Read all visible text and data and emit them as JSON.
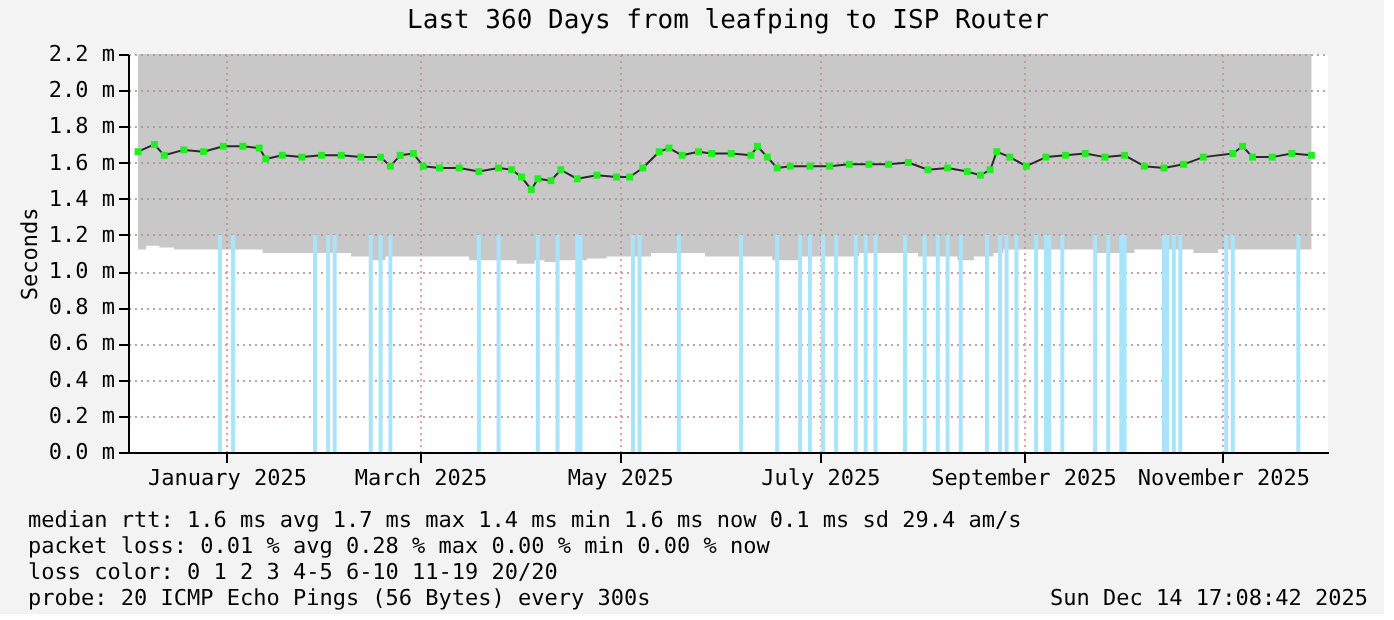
{
  "chart_data": {
    "type": "line",
    "title": "Last 360 Days from leafping to ISP Router",
    "ylabel": "Seconds",
    "xlim": [
      "2024-12-20",
      "2025-12-15"
    ],
    "xticks": [
      {
        "value": "2025-01-16",
        "label": "January 2025"
      },
      {
        "value": "2025-03-16",
        "label": "March 2025"
      },
      {
        "value": "2025-05-16",
        "label": "May 2025"
      },
      {
        "value": "2025-07-16",
        "label": "July 2025"
      },
      {
        "value": "2025-09-16",
        "label": "September 2025"
      },
      {
        "value": "2025-11-16",
        "label": "November 2025"
      }
    ],
    "ylim": [
      0,
      2.2
    ],
    "yticks": [
      {
        "value": 0,
        "label": "0.0 m"
      },
      {
        "value": 0.2,
        "label": "0.2 m"
      },
      {
        "value": 0.4,
        "label": "0.4 m"
      },
      {
        "value": 0.6,
        "label": "0.6 m"
      },
      {
        "value": 0.8,
        "label": "0.8 m"
      },
      {
        "value": 1,
        "label": "1.0 m"
      },
      {
        "value": 1.2,
        "label": "1.2 m"
      },
      {
        "value": 1.4,
        "label": "1.4 m"
      },
      {
        "value": 1.6,
        "label": "1.6 m"
      },
      {
        "value": 1.8,
        "label": "1.8 m"
      },
      {
        "value": 2,
        "label": "2.0 m"
      },
      {
        "value": 2.2,
        "label": "2.2 m"
      }
    ],
    "grid": true,
    "marker": "square",
    "line_style": "solid",
    "series": [
      {
        "type": "bar",
        "color": "#a8e4fc",
        "x": [
          "2025-01-14",
          "2025-01-18",
          "2025-02-12",
          "2025-02-16",
          "2025-02-18",
          "2025-03-01",
          "2025-03-04",
          "2025-03-07",
          "2025-04-03",
          "2025-04-09",
          "2025-04-21",
          "2025-04-27",
          "2025-05-03",
          "2025-05-04",
          "2025-05-20",
          "2025-05-22",
          "2025-06-03",
          "2025-06-22",
          "2025-07-03",
          "2025-07-10",
          "2025-07-13",
          "2025-07-17",
          "2025-07-21",
          "2025-07-27",
          "2025-07-30",
          "2025-08-02",
          "2025-08-11",
          "2025-08-17",
          "2025-08-21",
          "2025-08-24",
          "2025-08-28",
          "2025-09-05",
          "2025-09-09",
          "2025-09-11",
          "2025-09-14",
          "2025-09-20",
          "2025-09-23",
          "2025-09-24",
          "2025-09-28",
          "2025-10-08",
          "2025-10-12",
          "2025-10-16",
          "2025-10-17",
          "2025-10-29",
          "2025-10-30",
          "2025-11-01",
          "2025-11-03",
          "2025-11-17",
          "2025-11-19",
          "2025-12-09"
        ],
        "values": [
          1.2,
          1.2,
          1.2,
          1.2,
          1.2,
          1.2,
          1.2,
          1.2,
          1.2,
          1.2,
          1.2,
          1.2,
          1.2,
          1.2,
          1.2,
          1.2,
          1.2,
          1.2,
          1.2,
          1.2,
          1.2,
          1.2,
          1.2,
          1.2,
          1.2,
          1.2,
          1.2,
          1.2,
          1.2,
          1.2,
          1.2,
          1.2,
          1.2,
          1.2,
          1.2,
          1.2,
          1.2,
          1.2,
          1.2,
          1.2,
          1.2,
          1.2,
          1.2,
          1.2,
          1.2,
          1.2,
          1.2,
          1.2,
          1.2,
          1.2
        ]
      },
      {
        "color": "#22ee22",
        "x": [
          "2024-12-20",
          "2024-12-25",
          "2024-12-28",
          "2025-01-03",
          "2025-01-09",
          "2025-01-15",
          "2025-01-21",
          "2025-01-26",
          "2025-01-28",
          "2025-02-02",
          "2025-02-08",
          "2025-02-14",
          "2025-02-20",
          "2025-02-26",
          "2025-03-04",
          "2025-03-07",
          "2025-03-10",
          "2025-03-14",
          "2025-03-17",
          "2025-03-22",
          "2025-03-28",
          "2025-04-03",
          "2025-04-09",
          "2025-04-13",
          "2025-04-16",
          "2025-04-19",
          "2025-04-21",
          "2025-04-25",
          "2025-04-28",
          "2025-05-03",
          "2025-05-09",
          "2025-05-15",
          "2025-05-19",
          "2025-05-23",
          "2025-05-28",
          "2025-05-31",
          "2025-06-04",
          "2025-06-09",
          "2025-06-13",
          "2025-06-19",
          "2025-06-25",
          "2025-06-27",
          "2025-06-30",
          "2025-07-03",
          "2025-07-07",
          "2025-07-13",
          "2025-07-19",
          "2025-07-25",
          "2025-07-31",
          "2025-08-06",
          "2025-08-12",
          "2025-08-18",
          "2025-08-24",
          "2025-08-30",
          "2025-09-03",
          "2025-09-06",
          "2025-09-08",
          "2025-09-12",
          "2025-09-17",
          "2025-09-23",
          "2025-09-29",
          "2025-10-05",
          "2025-10-11",
          "2025-10-17",
          "2025-10-23",
          "2025-10-29",
          "2025-11-04",
          "2025-11-10",
          "2025-11-19",
          "2025-11-22",
          "2025-11-25",
          "2025-12-01",
          "2025-12-07",
          "2025-12-13"
        ],
        "values": [
          1.66,
          1.7,
          1.64,
          1.67,
          1.66,
          1.69,
          1.69,
          1.68,
          1.62,
          1.64,
          1.63,
          1.64,
          1.64,
          1.63,
          1.63,
          1.58,
          1.64,
          1.65,
          1.58,
          1.57,
          1.57,
          1.55,
          1.57,
          1.56,
          1.52,
          1.45,
          1.51,
          1.5,
          1.56,
          1.51,
          1.53,
          1.52,
          1.52,
          1.57,
          1.66,
          1.68,
          1.64,
          1.66,
          1.65,
          1.65,
          1.64,
          1.69,
          1.63,
          1.57,
          1.58,
          1.58,
          1.58,
          1.59,
          1.59,
          1.59,
          1.6,
          1.56,
          1.57,
          1.55,
          1.53,
          1.56,
          1.66,
          1.63,
          1.58,
          1.63,
          1.64,
          1.65,
          1.63,
          1.64,
          1.58,
          1.57,
          1.59,
          1.63,
          1.65,
          1.69,
          1.63,
          1.63,
          1.65,
          1.64
        ],
        "lower": [
          1.12,
          1.14,
          1.13,
          1.12,
          1.12,
          1.12,
          1.12,
          1.12,
          1.1,
          1.1,
          1.1,
          1.1,
          1.1,
          1.08,
          1.06,
          1.08,
          1.08,
          1.08,
          1.08,
          1.08,
          1.08,
          1.06,
          1.06,
          1.06,
          1.04,
          1.04,
          1.06,
          1.05,
          1.06,
          1.06,
          1.07,
          1.08,
          1.08,
          1.08,
          1.1,
          1.1,
          1.1,
          1.1,
          1.08,
          1.08,
          1.08,
          1.08,
          1.08,
          1.06,
          1.06,
          1.08,
          1.08,
          1.08,
          1.1,
          1.1,
          1.1,
          1.08,
          1.08,
          1.06,
          1.08,
          1.08,
          1.1,
          1.12,
          1.12,
          1.12,
          1.12,
          1.12,
          1.1,
          1.1,
          1.12,
          1.12,
          1.12,
          1.1,
          1.12,
          1.12,
          1.12,
          1.12,
          1.12,
          1.12
        ],
        "upper": [
          2.2,
          2.2,
          2.2,
          2.2,
          2.2,
          2.2,
          2.2,
          2.2,
          2.2,
          2.2,
          2.2,
          2.2,
          2.2,
          2.2,
          2.2,
          2.2,
          2.2,
          2.2,
          2.2,
          2.2,
          2.2,
          2.2,
          2.2,
          2.2,
          2.2,
          2.2,
          2.2,
          2.2,
          2.2,
          2.2,
          2.2,
          2.2,
          2.2,
          2.2,
          2.2,
          2.2,
          2.2,
          2.2,
          2.2,
          2.2,
          2.2,
          2.2,
          2.2,
          2.2,
          2.2,
          2.2,
          2.2,
          2.2,
          2.2,
          2.2,
          2.2,
          2.2,
          2.2,
          2.2,
          2.2,
          2.2,
          2.2,
          2.2,
          2.2,
          2.2,
          2.2,
          2.2,
          2.2,
          2.2,
          2.2,
          2.2,
          2.2,
          2.2,
          2.2,
          2.2,
          2.2,
          2.2,
          2.2,
          2.2
        ]
      }
    ],
    "annotations": [
      "median rtt:  1.6 ms avg  1.7 ms max  1.4 ms min  1.6 ms now  0.1 ms sd  29.4   am/s",
      "packet loss: 0.01 % avg  0.28 % max  0.00 % min  0.00 % now",
      "loss color:  0  1  2  3  4-5  6-10  11-19  20/20",
      "probe:       20 ICMP Echo Pings (56 Bytes) every 300s",
      "Sun Dec 14 17:08:42 2025"
    ]
  }
}
